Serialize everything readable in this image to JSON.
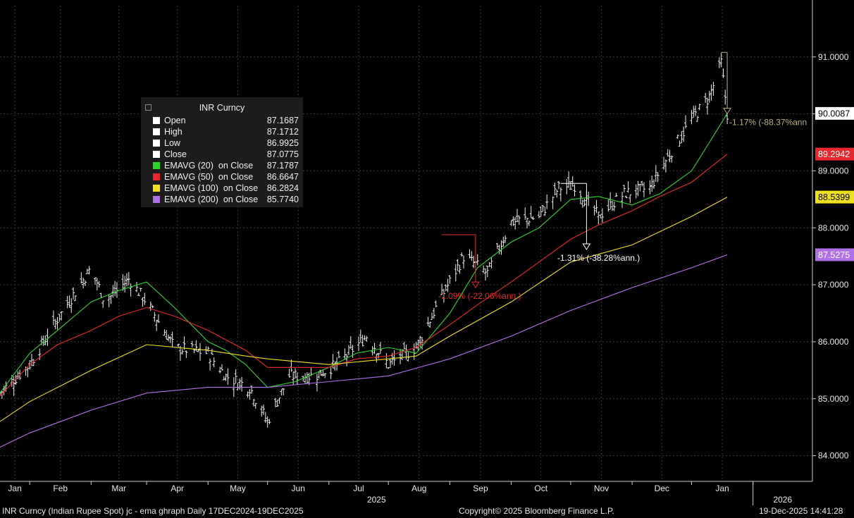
{
  "chart_data": {
    "type": "line",
    "title": "INR Curncy (Indian Rupee Spot) jc - ema ghraph",
    "interval": "Daily",
    "range": "17DEC2024-19DEC2025",
    "x_month_labels": [
      "Jan",
      "Feb",
      "Mar",
      "Apr",
      "May",
      "Jun",
      "Jul",
      "Aug",
      "Sep",
      "Oct",
      "Nov",
      "Dec",
      "Jan"
    ],
    "x_year_labels": [
      "2025",
      "2026"
    ],
    "y_ticks": [
      84.0,
      85.0,
      86.0,
      87.0,
      88.0,
      89.0,
      90.0,
      91.0
    ],
    "ylim": [
      83.55,
      91.9
    ],
    "grid": true,
    "price_bars": {
      "name": "INR Curncy",
      "style": "ohlc-bars",
      "color": "#ffffff",
      "x": [
        "2024-12-17",
        "2025-01-01",
        "2025-01-15",
        "2025-02-01",
        "2025-02-08",
        "2025-02-20",
        "2025-03-01",
        "2025-03-15",
        "2025-04-01",
        "2025-04-10",
        "2025-04-22",
        "2025-05-01",
        "2025-05-12",
        "2025-05-25",
        "2025-06-05",
        "2025-06-20",
        "2025-07-01",
        "2025-07-15",
        "2025-07-28",
        "2025-08-08",
        "2025-08-20",
        "2025-09-01",
        "2025-09-15",
        "2025-09-25",
        "2025-10-03",
        "2025-10-15",
        "2025-10-28",
        "2025-11-10",
        "2025-11-20",
        "2025-12-01",
        "2025-12-10",
        "2025-12-16",
        "2025-12-19"
      ],
      "y": [
        85.1,
        85.6,
        86.4,
        87.3,
        86.7,
        87.1,
        86.7,
        85.9,
        85.8,
        85.4,
        85.2,
        84.6,
        85.4,
        85.4,
        85.6,
        86.1,
        85.6,
        85.9,
        86.8,
        87.5,
        87.2,
        88.1,
        88.2,
        88.7,
        88.75,
        88.2,
        88.6,
        88.7,
        89.3,
        89.9,
        90.3,
        90.9,
        90.0
      ],
      "last_close": 90.0087
    },
    "series": [
      {
        "name": "EMAVG (20)",
        "color": "#2bd62b",
        "last": 90.0087,
        "x": [
          "2024-12-17",
          "2025-01-01",
          "2025-01-15",
          "2025-02-01",
          "2025-02-15",
          "2025-03-01",
          "2025-03-15",
          "2025-04-01",
          "2025-04-10",
          "2025-04-20",
          "2025-05-01",
          "2025-05-15",
          "2025-06-01",
          "2025-06-15",
          "2025-07-01",
          "2025-07-15",
          "2025-08-01",
          "2025-08-15",
          "2025-09-01",
          "2025-09-15",
          "2025-10-01",
          "2025-10-15",
          "2025-11-01",
          "2025-11-15",
          "2025-12-01",
          "2025-12-10",
          "2025-12-19"
        ],
        "y": [
          85.1,
          85.8,
          86.2,
          86.7,
          86.9,
          87.05,
          86.6,
          86.0,
          85.85,
          85.6,
          85.2,
          85.3,
          85.55,
          85.8,
          85.9,
          85.8,
          86.5,
          87.3,
          87.75,
          88.0,
          88.5,
          88.55,
          88.4,
          88.6,
          89.0,
          89.5,
          90.0087
        ]
      },
      {
        "name": "EMAVG (50)",
        "color": "#e8282c",
        "last": 89.2942,
        "x": [
          "2024-12-17",
          "2025-01-01",
          "2025-01-15",
          "2025-02-01",
          "2025-02-15",
          "2025-03-01",
          "2025-03-15",
          "2025-04-01",
          "2025-04-20",
          "2025-05-01",
          "2025-05-15",
          "2025-06-01",
          "2025-06-15",
          "2025-07-01",
          "2025-07-15",
          "2025-08-01",
          "2025-08-15",
          "2025-09-01",
          "2025-09-15",
          "2025-10-01",
          "2025-10-15",
          "2025-11-01",
          "2025-11-15",
          "2025-12-01",
          "2025-12-19"
        ],
        "y": [
          85.05,
          85.6,
          85.95,
          86.2,
          86.45,
          86.6,
          86.45,
          86.2,
          85.85,
          85.55,
          85.55,
          85.55,
          85.7,
          85.75,
          85.9,
          86.3,
          86.65,
          87.05,
          87.4,
          87.8,
          88.05,
          88.3,
          88.55,
          88.8,
          89.2942
        ]
      },
      {
        "name": "EMAVG (100)",
        "color": "#f0e020",
        "last": 88.5399,
        "x": [
          "2024-12-17",
          "2025-01-01",
          "2025-02-01",
          "2025-03-01",
          "2025-04-01",
          "2025-04-20",
          "2025-05-01",
          "2025-06-01",
          "2025-07-01",
          "2025-07-15",
          "2025-08-01",
          "2025-09-01",
          "2025-10-01",
          "2025-11-01",
          "2025-12-01",
          "2025-12-19"
        ],
        "y": [
          84.6,
          84.95,
          85.5,
          85.95,
          85.85,
          85.75,
          85.7,
          85.6,
          85.7,
          85.75,
          86.1,
          86.7,
          87.4,
          87.7,
          88.2,
          88.5399
        ]
      },
      {
        "name": "EMAVG (200)",
        "color": "#b070e8",
        "last": 87.5275,
        "x": [
          "2024-12-17",
          "2025-01-01",
          "2025-02-01",
          "2025-03-01",
          "2025-04-01",
          "2025-05-01",
          "2025-06-01",
          "2025-07-01",
          "2025-08-01",
          "2025-09-01",
          "2025-10-01",
          "2025-11-01",
          "2025-12-01",
          "2025-12-19"
        ],
        "y": [
          84.15,
          84.4,
          84.8,
          85.1,
          85.2,
          85.2,
          85.3,
          85.4,
          85.7,
          86.1,
          86.55,
          86.95,
          87.3,
          87.5275
        ]
      }
    ],
    "annotations": [
      {
        "text": "-1.09% (-22.06%ann.)",
        "color": "#e8282c",
        "x_from": "2025-07-28",
        "x_to": "2025-08-14",
        "y_from": 87.88,
        "y_to": 86.95
      },
      {
        "text": "-1.31% (-38.28%ann.)",
        "color": "#ffffff",
        "x_from": "2025-09-26",
        "x_to": "2025-10-09",
        "y_from": 88.78,
        "y_to": 87.62
      },
      {
        "text": "-1.17% (-88.37%ann",
        "color": "#bdb37a",
        "x_from": "2025-12-16",
        "x_to": "2025-12-19",
        "y_from": 91.08,
        "y_to": 90.0
      }
    ]
  },
  "legend": {
    "title": "INR Curncy",
    "rows": [
      {
        "label": "Open",
        "value": "87.1687",
        "color": "#ffffff"
      },
      {
        "label": "High",
        "value": "87.1712",
        "color": "#ffffff"
      },
      {
        "label": "Low",
        "value": "86.9925",
        "color": "#ffffff"
      },
      {
        "label": "Close",
        "value": "87.0775",
        "color": "#ffffff"
      },
      {
        "label": "EMAVG (20)  on Close",
        "value": "87.1787",
        "color": "#2bd62b"
      },
      {
        "label": "EMAVG (50)  on Close",
        "value": "86.6647",
        "color": "#e8282c"
      },
      {
        "label": "EMAVG (100)  on Close",
        "value": "86.2824",
        "color": "#f0e020"
      },
      {
        "label": "EMAVG (200)  on Close",
        "value": "85.7740",
        "color": "#b070e8"
      }
    ]
  },
  "right_axis_badges": [
    {
      "text": "90.0087",
      "bg": "#ffffff",
      "fg": "#000000",
      "value": 90.0087
    },
    {
      "text": "89.2942",
      "bg": "#e8282c",
      "fg": "#ffffff",
      "value": 89.2942
    },
    {
      "text": "88.5399",
      "bg": "#f0e020",
      "fg": "#000000",
      "value": 88.5399
    },
    {
      "text": "87.5275",
      "bg": "#b070e8",
      "fg": "#ffffff",
      "value": 87.5275
    }
  ],
  "footer": {
    "left": "INR Curncy (Indian Rupee Spot) jc - ema ghraph Daily 17DEC2024-19DEC2025",
    "center": "Copyright© 2025 Bloomberg Finance L.P.",
    "right": "19-Dec-2025 14:41:28"
  }
}
